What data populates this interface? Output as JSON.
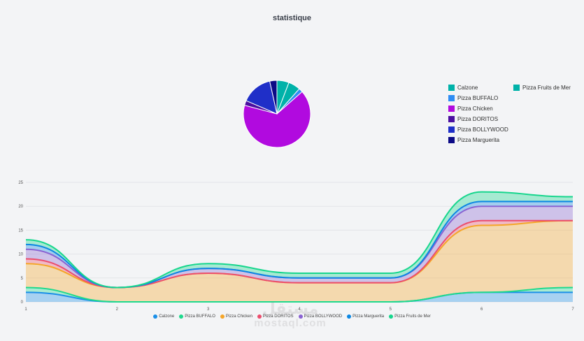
{
  "title": "statistique",
  "watermark": {
    "arabic": "مستقل",
    "latin": "mostaql.com"
  },
  "chart_data": [
    {
      "type": "pie",
      "labels": [
        "Calzone",
        "Pizza Fruits de Mer",
        "Pizza BUFFALO",
        "Pizza Chicken",
        "Pizza DORITOS",
        "Pizza BOLLYWOOD",
        "Pizza Marguerita"
      ],
      "values": [
        1.5,
        1.5,
        0.5,
        17,
        0.6,
        3.9,
        0.9
      ],
      "colors": [
        "#00b2a9",
        "#00b2a9",
        "#2f8df4",
        "#b10adf",
        "#4b0fa0",
        "#1f2fc8",
        "#0c0a86"
      ],
      "legend_position": "right"
    },
    {
      "type": "area",
      "x": [
        1,
        2,
        3,
        4,
        5,
        6,
        7
      ],
      "ylim": [
        0,
        25
      ],
      "xticks": [
        "1",
        "2",
        "3",
        "4",
        "5",
        "6",
        "7"
      ],
      "yticks": [
        "0",
        "5",
        "10",
        "15",
        "20",
        "25"
      ],
      "stacked": true,
      "series": [
        {
          "name": "Calzone",
          "values": [
            2,
            0,
            0,
            0,
            0,
            2,
            2
          ],
          "color": "#1a8fe8"
        },
        {
          "name": "Pizza BUFFALO",
          "values": [
            1,
            0,
            0,
            0,
            0,
            0,
            1
          ],
          "color": "#1ed98d"
        },
        {
          "name": "Pizza Chicken",
          "values": [
            5,
            3,
            6,
            4,
            4,
            14,
            14
          ],
          "color": "#f5a528"
        },
        {
          "name": "Pizza DORITOS",
          "values": [
            1,
            0,
            0,
            0,
            0,
            1,
            0
          ],
          "color": "#ec4d6d"
        },
        {
          "name": "Pizza BOLLYWOOD",
          "values": [
            2,
            0,
            1,
            1,
            1,
            3,
            3
          ],
          "color": "#8a63d2"
        },
        {
          "name": "Pizza Marguerita",
          "values": [
            1,
            0,
            0,
            0,
            0,
            1,
            1
          ],
          "color": "#0b87e3"
        },
        {
          "name": "Pizza Fruits de Mer",
          "values": [
            1,
            0,
            1,
            1,
            1,
            2,
            1
          ],
          "color": "#17d68d"
        }
      ],
      "legend_position": "bottom"
    }
  ]
}
